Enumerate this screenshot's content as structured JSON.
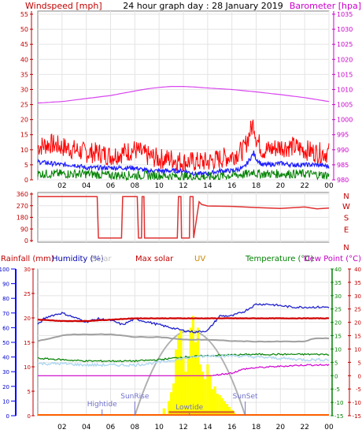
{
  "header": {
    "left_title": "Windspeed [mph]",
    "center_title": "24 hour graph day : 28 January 2019",
    "right_title": "Barometer [hpa]"
  },
  "colors": {
    "barometer": "#d946ef",
    "gust": "#ff0000",
    "wind_avg": "#1d1dff",
    "wind_min": "#008000",
    "direction": "#e03030",
    "humidity": "#2020cc",
    "rain_axis": "#0000ff",
    "temperature": "#008000",
    "dewpoint": "#d000d0",
    "uv": "#cc8800",
    "solar_max": "#ff0000",
    "solar": "#ffff00",
    "grey": "#a0a0a0",
    "lightblue": "#b0d8f0",
    "sun_arc": "#b0b0b0",
    "labels_blue": "#7070cc"
  },
  "x_ticks": [
    "02",
    "04",
    "06",
    "08",
    "10",
    "12",
    "14",
    "16",
    "18",
    "20",
    "22",
    "00"
  ],
  "chart_data": [
    {
      "type": "line",
      "title": "24 hour graph day : 28 January 2019",
      "ylabel_left": "Windspeed [mph]",
      "ylabel_right": "Barometer [hpa]",
      "y_left_ticks": [
        "55",
        "50",
        "45",
        "40",
        "35",
        "30",
        "25",
        "20",
        "15",
        "10",
        "5",
        "0"
      ],
      "y_right_ticks": [
        "1035",
        "1030",
        "1025",
        "1020",
        "1015",
        "1010",
        "1005",
        "1000",
        "995",
        "990",
        "985",
        "980"
      ],
      "ylim_left": [
        0,
        55
      ],
      "ylim_right": [
        980,
        1035
      ],
      "x_range_hours": [
        0,
        24
      ],
      "series": [
        {
          "key": "barometer",
          "axis": "right",
          "x": [
            0,
            2,
            4,
            6,
            8,
            9,
            10,
            11,
            12,
            13,
            14,
            16,
            18,
            20,
            22,
            24
          ],
          "y": [
            1005.5,
            1006,
            1007,
            1008,
            1009.5,
            1010.2,
            1010.7,
            1011,
            1011,
            1010.8,
            1010.5,
            1010,
            1009.2,
            1008.3,
            1007.3,
            1006
          ]
        },
        {
          "key": "gust",
          "axis": "left",
          "x": [
            0,
            1,
            2,
            3,
            4,
            5,
            6,
            7,
            8,
            9,
            10,
            11,
            12,
            13,
            14,
            15,
            16,
            17,
            17.5,
            17.8,
            18,
            18.5,
            19,
            20,
            21,
            22,
            23,
            24
          ],
          "y": [
            11,
            12,
            11,
            10,
            9,
            9,
            8,
            9,
            10,
            8,
            7,
            7,
            6,
            6,
            6,
            7,
            8,
            10,
            16,
            19,
            14,
            10,
            10,
            11,
            11,
            10,
            9,
            9
          ]
        },
        {
          "key": "wind_avg",
          "axis": "left",
          "x": [
            0,
            1,
            2,
            3,
            4,
            5,
            6,
            7,
            8,
            9,
            10,
            11,
            12,
            13,
            14,
            15,
            16,
            17,
            17.5,
            17.8,
            18,
            18.5,
            19,
            20,
            21,
            22,
            23,
            24
          ],
          "y": [
            6,
            5.5,
            5,
            5,
            4,
            4,
            4,
            4,
            4,
            3,
            3,
            3,
            3,
            2,
            2,
            3,
            3,
            4,
            7,
            9,
            7,
            5,
            5,
            5.5,
            5,
            5,
            5,
            4.5
          ]
        },
        {
          "key": "wind_min",
          "axis": "left",
          "x": [
            0,
            2,
            4,
            6,
            8,
            10,
            12,
            14,
            16,
            17.5,
            17.8,
            18,
            19,
            20,
            22,
            24
          ],
          "y": [
            2,
            2,
            2,
            1.5,
            1.5,
            1.5,
            1,
            1,
            1.5,
            2,
            3,
            2,
            2,
            2,
            2,
            1.5
          ]
        }
      ]
    },
    {
      "type": "line",
      "y_ticks": [
        "360",
        "270",
        "180",
        "90",
        "0"
      ],
      "ylabel_right": [
        "N",
        "W",
        "S",
        "E",
        "N"
      ],
      "ylim": [
        0,
        360
      ],
      "series": [
        {
          "key": "direction",
          "name": "",
          "x": [
            0,
            4.9,
            5.0,
            6.9,
            7.0,
            8.2,
            8.3,
            8.55,
            8.6,
            8.75,
            8.8,
            11.5,
            11.6,
            11.8,
            11.85,
            12.5,
            12.55,
            12.8,
            12.85,
            13.3,
            13.5,
            14,
            16,
            18,
            20,
            22,
            23,
            24
          ],
          "y": [
            340,
            340,
            20,
            20,
            340,
            340,
            20,
            20,
            340,
            340,
            20,
            20,
            340,
            340,
            20,
            20,
            340,
            340,
            20,
            300,
            280,
            270,
            260,
            260,
            255,
            255,
            245,
            255
          ]
        }
      ]
    },
    {
      "type": "line",
      "titles": {
        "rainfall": "Rainfall (mm)",
        "humidity": "Humidity (%)",
        "solar": "Solar",
        "max_solar": "Max solar",
        "uv": "UV",
        "temperature": "Temperature (°C)",
        "dewpoint": "Dew Point (°C)"
      },
      "humidity_ticks": [
        "100",
        "90",
        "80",
        "70",
        "60",
        "50",
        "40",
        "30",
        "20",
        "10",
        "0"
      ],
      "rain_ticks": [
        "30",
        "25",
        "20",
        "15",
        "10",
        "5",
        "0"
      ],
      "temp_ticks": [
        "40",
        "35",
        "30",
        "25",
        "20",
        "15",
        "10",
        "5",
        "0",
        "-5",
        "-10",
        "-15"
      ],
      "markers": [
        {
          "label": "Hightide",
          "hour": 5.3
        },
        {
          "label": "SunRise",
          "hour": 8.0
        },
        {
          "label": "Lowtide",
          "hour": 12.5
        },
        {
          "label": "SunSet",
          "hour": 17.1
        }
      ],
      "humidity_lim": [
        0,
        100
      ],
      "temp_lim": [
        -15,
        40
      ],
      "series": [
        {
          "key": "humidity",
          "axis": "humidity",
          "x": [
            0,
            0.5,
            1,
            2,
            3,
            4,
            5,
            6,
            7,
            8,
            9,
            10,
            11,
            12,
            13,
            14,
            14.5,
            15,
            16,
            17,
            18,
            19,
            20,
            21,
            22,
            23,
            24
          ],
          "y": [
            62,
            66,
            68,
            70,
            67,
            64,
            66,
            65,
            62,
            66,
            64,
            62,
            60,
            58,
            57,
            58,
            63,
            68,
            68,
            71,
            76,
            76,
            75,
            74,
            74,
            74,
            74
          ]
        },
        {
          "key": "temperature_red",
          "axis": "temp",
          "x": [
            0,
            2,
            4,
            6,
            8,
            10,
            12,
            14,
            16,
            18,
            20,
            22,
            24
          ],
          "y": [
            21,
            20.5,
            20.5,
            21,
            21.5,
            21.5,
            21.5,
            21.5,
            21.5,
            21.5,
            21.5,
            21.5,
            21.5
          ]
        },
        {
          "key": "grey",
          "axis": "temp",
          "x": [
            0,
            1,
            2,
            3,
            4,
            6,
            8,
            10,
            12,
            14,
            16,
            18,
            20,
            22,
            22.8,
            24
          ],
          "y": [
            13,
            14,
            15,
            15.5,
            15.5,
            15.5,
            14.5,
            14.5,
            13.5,
            13.5,
            13,
            12.8,
            12.8,
            12.8,
            14,
            14
          ]
        },
        {
          "key": "temperature",
          "axis": "temp",
          "x": [
            0,
            2,
            4,
            6,
            8,
            10,
            12,
            14,
            16,
            18,
            20,
            22,
            24
          ],
          "y": [
            6.5,
            6,
            5.5,
            5.5,
            5.5,
            6,
            7,
            7.5,
            7.8,
            8,
            8,
            8,
            8
          ]
        },
        {
          "key": "lightblue",
          "axis": "temp",
          "x": [
            0,
            2,
            4,
            6,
            8,
            10,
            12,
            14,
            16,
            18,
            20,
            22,
            24
          ],
          "y": [
            4.5,
            4.5,
            4,
            4,
            4,
            5,
            6.5,
            7.5,
            7.5,
            7,
            6.5,
            6,
            6
          ]
        },
        {
          "key": "dewpoint",
          "axis": "temp",
          "x": [
            0,
            2,
            4,
            6,
            8,
            10,
            12,
            14,
            15,
            16,
            17,
            18,
            20,
            22,
            24
          ],
          "y": [
            -2.5,
            -2,
            -2,
            -1.5,
            -1.5,
            -1,
            -0.5,
            -0.5,
            0.5,
            1,
            2.5,
            3,
            3.5,
            4,
            4
          ]
        },
        {
          "key": "rain",
          "axis": "rain",
          "x": [
            0,
            24
          ],
          "y": [
            0,
            0
          ]
        }
      ],
      "solar_bars": {
        "hours": [
          10.4,
          10.8,
          11.0,
          11.2,
          11.4,
          11.6,
          11.8,
          12.0,
          12.2,
          12.4,
          12.6,
          12.8,
          13.0,
          13.2,
          13.4,
          13.6,
          13.8,
          14.0,
          14.2,
          14.4,
          14.6,
          14.8,
          15.0,
          15.2,
          15.4,
          15.6,
          15.8,
          16.0,
          16.2
        ],
        "values": [
          5,
          10,
          16,
          22,
          45,
          55,
          58,
          40,
          30,
          40,
          60,
          68,
          50,
          60,
          35,
          30,
          25,
          35,
          28,
          18,
          20,
          15,
          14,
          12,
          10,
          8,
          6,
          4,
          2
        ]
      },
      "sun_arc": {
        "start": 8.0,
        "end": 17.1,
        "peak": 58
      }
    }
  ]
}
